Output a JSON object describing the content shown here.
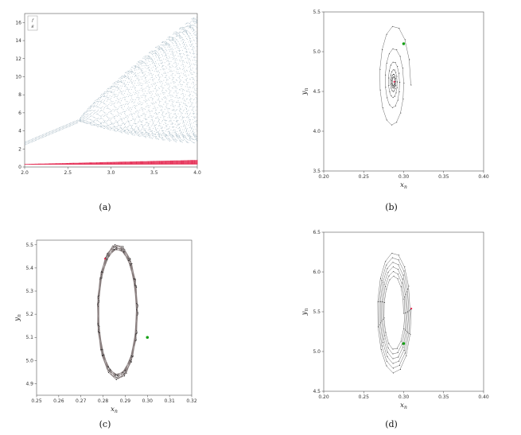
{
  "colors": {
    "bifurcation_x": "#7a95a6",
    "bifurcation_y": "#e3204a",
    "orbit_line": "#444444",
    "start_point": "#15a015",
    "end_point": "#e3204a",
    "circle_orbit": "#8a7f7f"
  },
  "chart_data": [
    {
      "type": "scatter",
      "caption": "(a)",
      "xlim": [
        2.0,
        4.0
      ],
      "ylim": [
        0,
        17
      ],
      "xticks": [
        "2.0",
        "2.5",
        "3.0",
        "3.5",
        "4.0"
      ],
      "yticks": [
        "0",
        "2",
        "4",
        "6",
        "8",
        "10",
        "12",
        "14",
        "16"
      ],
      "legend": [
        "f",
        "g"
      ],
      "legend_position": "top-left",
      "series": [
        {
          "name": "f",
          "kind": "bifurcation-upper",
          "branch_start": [
            2.0,
            2.6
          ],
          "split_at": 2.65
        },
        {
          "name": "g",
          "kind": "bifurcation-lower",
          "range": [
            2.0,
            4.0
          ]
        }
      ]
    },
    {
      "type": "line",
      "caption": "(b)",
      "xlabel": "x_n",
      "ylabel": "y_n",
      "xlim": [
        0.2,
        0.4
      ],
      "ylim": [
        3.5,
        5.5
      ],
      "xticks": [
        "0.20",
        "0.25",
        "0.30",
        "0.35",
        "0.40"
      ],
      "yticks": [
        "3.5",
        "4.0",
        "4.5",
        "5.0",
        "5.5"
      ],
      "start": [
        0.3,
        5.1
      ],
      "center": [
        0.287,
        4.62
      ],
      "spiral": "inward"
    },
    {
      "type": "line",
      "caption": "(c)",
      "xlabel": "x_n",
      "ylabel": "y_n",
      "xlim": [
        0.25,
        0.32
      ],
      "ylim": [
        4.85,
        5.52
      ],
      "xticks": [
        "0.25",
        "0.26",
        "0.27",
        "0.28",
        "0.29",
        "0.30",
        "0.31",
        "0.32"
      ],
      "yticks": [
        "4.9",
        "5.0",
        "5.1",
        "5.2",
        "5.3",
        "5.4",
        "5.5"
      ],
      "start": [
        0.3,
        5.1
      ],
      "center": [
        0.2865,
        5.21
      ],
      "spiral": "invariant-circle"
    },
    {
      "type": "line",
      "caption": "(d)",
      "xlabel": "x_n",
      "ylabel": "y_n",
      "xlim": [
        0.2,
        0.4
      ],
      "ylim": [
        4.5,
        6.5
      ],
      "xticks": [
        "0.20",
        "0.25",
        "0.30",
        "0.35",
        "0.40"
      ],
      "yticks": [
        "4.5",
        "5.0",
        "5.5",
        "6.0",
        "6.5"
      ],
      "start": [
        0.3,
        5.1
      ],
      "center": [
        0.288,
        5.5
      ],
      "spiral": "outward"
    }
  ]
}
